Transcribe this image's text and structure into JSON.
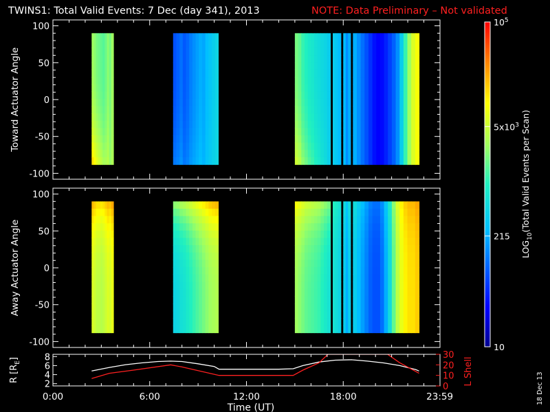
{
  "title": {
    "main": "TWINS1: Total Valid Events:  7 Dec (day 341), 2013",
    "note": "NOTE: Data Preliminary – Not validated"
  },
  "stamp": "18 Dec 13",
  "colors": {
    "background": "#000000",
    "foreground": "#ffffff",
    "note": "#ff2020",
    "lshell_line": "#ff2020",
    "r_line": "#ffffff"
  },
  "chart_data": [
    {
      "type": "heatmap",
      "panel": "toward",
      "ylabel": "Toward Actuator Angle",
      "ylim": [
        -108,
        108
      ],
      "yticks": [
        100,
        50,
        0,
        -50,
        -100
      ],
      "xlim": [
        0,
        24
      ],
      "angle_range": [
        -88,
        90
      ],
      "blocks": [
        {
          "start_h": 2.4,
          "end_h": 3.75,
          "cols": [
            0.62,
            0.6,
            0.58,
            0.57,
            0.56,
            0.55,
            0.57,
            0.6,
            0.58,
            0.62
          ],
          "low_boost": 0.16
        },
        {
          "start_h": 7.45,
          "end_h": 10.25,
          "cols": [
            0.22,
            0.24,
            0.26,
            0.23,
            0.25,
            0.28,
            0.3,
            0.32,
            0.34,
            0.33,
            0.36,
            0.38,
            0.4,
            0.42
          ],
          "low_boost": 0.05
        },
        {
          "start_h": 15.0,
          "end_h": 17.2,
          "cols": [
            0.58,
            0.56,
            0.52,
            0.5,
            0.48,
            0.47,
            0.45,
            0.44,
            0.43,
            0.42,
            0.4
          ],
          "low_boost": 0.1
        },
        {
          "start_h": 17.35,
          "end_h": 17.85,
          "cols": [
            0.4,
            0.38,
            0.36
          ],
          "low_boost": 0.0
        },
        {
          "start_h": 18.0,
          "end_h": 18.45,
          "cols": [
            0.36,
            0.3,
            0.34
          ],
          "low_boost": 0.0
        },
        {
          "start_h": 18.6,
          "end_h": 22.7,
          "cols": [
            0.34,
            0.3,
            0.26,
            0.22,
            0.18,
            0.14,
            0.12,
            0.13,
            0.16,
            0.2,
            0.24,
            0.3,
            0.4,
            0.52,
            0.62,
            0.7,
            0.74
          ],
          "low_boost": 0.0
        }
      ]
    },
    {
      "type": "heatmap",
      "panel": "away",
      "ylabel": "Away Actuator Angle",
      "ylim": [
        -108,
        108
      ],
      "yticks": [
        100,
        50,
        0,
        -50,
        -100
      ],
      "xlim": [
        0,
        24
      ],
      "angle_range": [
        -88,
        90
      ],
      "blocks": [
        {
          "start_h": 2.4,
          "end_h": 3.75,
          "cols": [
            0.7,
            0.68,
            0.66,
            0.66,
            0.65,
            0.66,
            0.68,
            0.7,
            0.69,
            0.72
          ],
          "high_boost": 0.12
        },
        {
          "start_h": 7.45,
          "end_h": 10.25,
          "cols": [
            0.42,
            0.43,
            0.45,
            0.46,
            0.48,
            0.5,
            0.52,
            0.54,
            0.56,
            0.58,
            0.6,
            0.62,
            0.63,
            0.64
          ],
          "high_boost": 0.18
        },
        {
          "start_h": 15.0,
          "end_h": 17.2,
          "cols": [
            0.62,
            0.6,
            0.58,
            0.56,
            0.55,
            0.54,
            0.53,
            0.52,
            0.5,
            0.48,
            0.46
          ],
          "high_boost": 0.12
        },
        {
          "start_h": 17.35,
          "end_h": 17.85,
          "cols": [
            0.46,
            0.44,
            0.42
          ],
          "high_boost": 0.04
        },
        {
          "start_h": 18.0,
          "end_h": 18.45,
          "cols": [
            0.4,
            0.34,
            0.4
          ],
          "high_boost": 0.04
        },
        {
          "start_h": 18.6,
          "end_h": 22.7,
          "cols": [
            0.4,
            0.36,
            0.32,
            0.28,
            0.24,
            0.22,
            0.22,
            0.26,
            0.34,
            0.44,
            0.56,
            0.66,
            0.72,
            0.76,
            0.78,
            0.78,
            0.8
          ],
          "high_boost": 0.04
        }
      ]
    },
    {
      "type": "line",
      "panel": "orbit",
      "xlabel": "Time (UT)",
      "xlim": [
        0,
        24
      ],
      "xticks": [
        {
          "h": 0,
          "label": "0:00"
        },
        {
          "h": 6,
          "label": "6:00"
        },
        {
          "h": 12,
          "label": "12:00"
        },
        {
          "h": 18,
          "label": "18:00"
        },
        {
          "h": 23.983,
          "label": "23:59"
        }
      ],
      "ylabel_left": "R [R",
      "ylabel_left_sub": "E",
      "ylabel_left_end": "]",
      "ylim_left": [
        1.5,
        8.5
      ],
      "yticks_left": [
        8,
        6,
        4,
        2
      ],
      "ylabel_right": "L Shell",
      "ylim_right": [
        0,
        30
      ],
      "yticks_right": [
        30,
        20,
        10,
        0
      ],
      "series": [
        {
          "axis": "left",
          "color": "#ffffff",
          "x": [
            2.4,
            3.5,
            4.5,
            5.5,
            6.5,
            7.3,
            8.0,
            9.0,
            10.0,
            10.3,
            12.0,
            14.0,
            14.9,
            15.5,
            16.5,
            17.5,
            18.5,
            19.5,
            20.5,
            21.5,
            22.5,
            22.7
          ],
          "y": [
            4.8,
            5.6,
            6.2,
            6.6,
            6.9,
            7.0,
            6.9,
            6.4,
            5.8,
            5.2,
            5.2,
            5.2,
            5.3,
            6.0,
            6.8,
            7.2,
            7.3,
            7.0,
            6.6,
            6.0,
            5.1,
            4.8
          ]
        },
        {
          "axis": "right",
          "color": "#ff2020",
          "x": [
            2.4,
            3.5,
            5.0,
            7.3,
            8.0,
            10.3,
            12.0,
            14.9,
            15.5,
            16.5,
            17.05,
            20.75,
            21.5,
            22.7
          ],
          "y": [
            7,
            12,
            15,
            20,
            18,
            10,
            10,
            10,
            15,
            22,
            30,
            30,
            22,
            12
          ]
        }
      ]
    }
  ],
  "colorbar": {
    "label": "LOG",
    "label_sub": "10",
    "label_end": "(Total Valid Events per Scan)",
    "ticks": [
      {
        "frac": 1.0,
        "label": "10",
        "sup": "5",
        "value": 100000
      },
      {
        "frac": 0.678,
        "label": "5x10",
        "sup": "3",
        "value": 5000
      },
      {
        "frac": 0.341,
        "label": "215",
        "sup": "",
        "value": 215
      },
      {
        "frac": 0.0,
        "label": "10",
        "sup": "",
        "value": 10
      }
    ]
  }
}
